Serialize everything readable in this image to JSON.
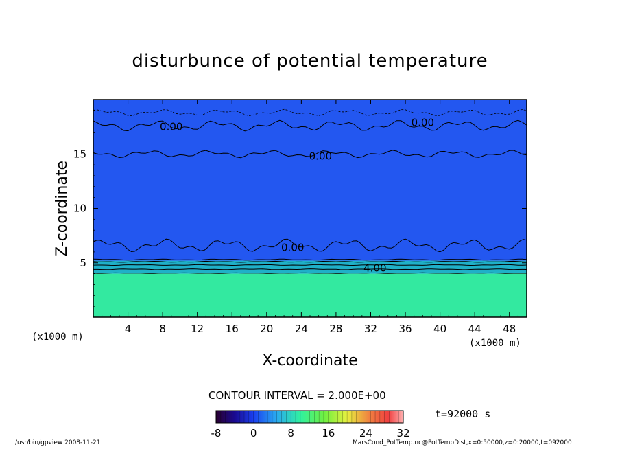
{
  "chart_data": {
    "type": "heatmap",
    "title": "disturbunce of potential temperature",
    "xlabel": "X-coordinate",
    "ylabel": "Z-coordinate",
    "x_unit_left": "(x1000 m)",
    "x_unit_right": "(x1000 m)",
    "xlim": [
      0,
      50
    ],
    "ylim": [
      0,
      20
    ],
    "x_ticks": [
      4,
      8,
      12,
      16,
      20,
      24,
      28,
      32,
      36,
      40,
      44,
      48
    ],
    "y_ticks": [
      5,
      10,
      15
    ],
    "contour_labels": [
      {
        "text": "0.00",
        "x": 9,
        "z": 17.5
      },
      {
        "text": "0.00",
        "x": 38,
        "z": 17.9
      },
      {
        "text": "-0.00",
        "x": 26,
        "z": 14.8
      },
      {
        "text": "0.00",
        "x": 23,
        "z": 6.4
      },
      {
        "text": "4.00",
        "x": 32.5,
        "z": 4.5
      }
    ],
    "layers": [
      {
        "z_from": 0,
        "z_to": 4.0,
        "value_range": "about 12",
        "color": "#33e9a0"
      },
      {
        "z_from": 4.0,
        "z_to": 5.2,
        "value_range": "4 to 10",
        "color": "#1fb0c8"
      },
      {
        "z_from": 5.2,
        "z_to": 20,
        "value_range": "about 0",
        "color": "#2357f0"
      }
    ],
    "colorbar": {
      "ticks": [
        -8,
        0,
        8,
        16,
        24,
        32
      ],
      "min": -8,
      "max": 32
    },
    "contour_interval": "CONTOUR INTERVAL = 2.000E+00",
    "time": "t=92000 s",
    "grid": false,
    "legend_position": "bottom"
  },
  "footer": {
    "left": "/usr/bin/gpview   2008-11-21",
    "right": "MarsCond_PotTemp.nc@PotTempDist,x=0:50000,z=0:20000,t=092000"
  }
}
